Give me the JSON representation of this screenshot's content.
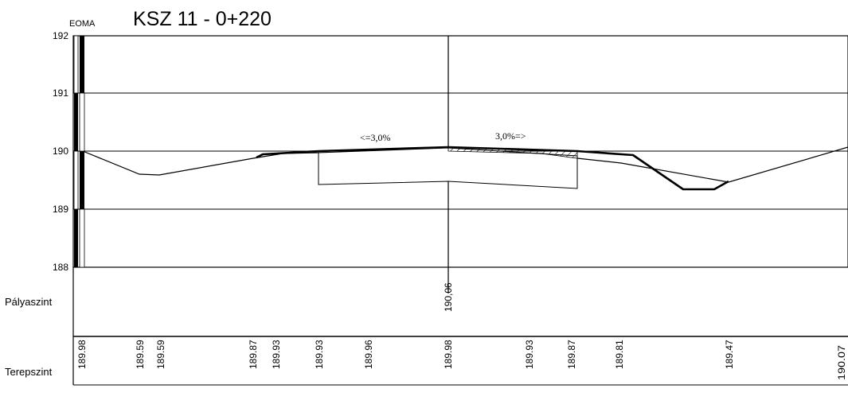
{
  "title": "KSZ 11 - 0+220",
  "datum_label": "EOMA",
  "axis": {
    "y_ticks": [
      "192",
      "191",
      "190",
      "189",
      "188"
    ],
    "ylim": [
      188,
      192
    ]
  },
  "slopes": {
    "left": "<=3,0%",
    "right": "3,0%=>"
  },
  "rows": {
    "palyaszint": {
      "label": "Pályaszint",
      "values": [
        {
          "label": "190,06",
          "value": 190.06
        }
      ]
    },
    "terepszint": {
      "label": "Terepszint",
      "values": [
        {
          "label": "189.98",
          "value": 189.98
        },
        {
          "label": "189.59",
          "value": 189.59
        },
        {
          "label": "189.59",
          "value": 189.59
        },
        {
          "label": "189.87",
          "value": 189.87
        },
        {
          "label": "189.93",
          "value": 189.93
        },
        {
          "label": "189.93",
          "value": 189.93
        },
        {
          "label": "189.96",
          "value": 189.96
        },
        {
          "label": "189.98",
          "value": 189.98
        },
        {
          "label": "189.93",
          "value": 189.93
        },
        {
          "label": "189.87",
          "value": 189.87
        },
        {
          "label": "189.81",
          "value": 189.81
        },
        {
          "label": "189.47",
          "value": 189.47
        },
        {
          "label": "190.07",
          "value": 190.07
        }
      ]
    }
  },
  "colors": {
    "ink": "#000000",
    "grid": "#000000",
    "background": "#ffffff"
  }
}
